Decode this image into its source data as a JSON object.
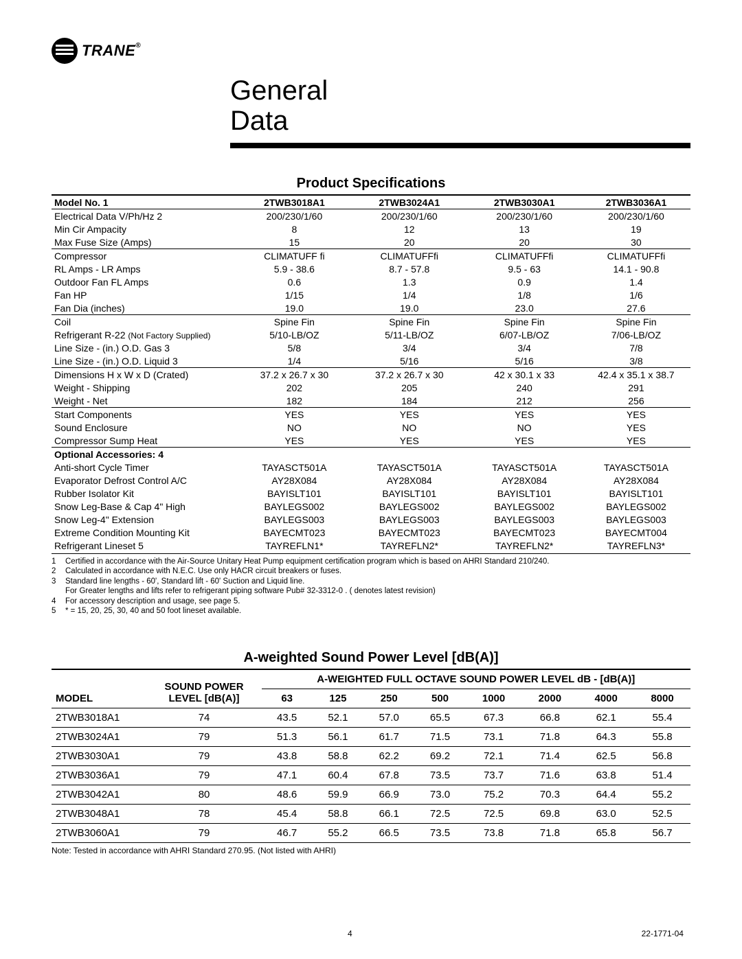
{
  "logo": {
    "brand": "TRANE"
  },
  "title_line1": "General",
  "title_line2": "Data",
  "spec_heading": "Product Specifications",
  "spec_table": {
    "header_label": "Model No. 1",
    "models": [
      "2TWB3018A1",
      "2TWB3024A1",
      "2TWB3030A1",
      "2TWB3036A1"
    ],
    "groups": [
      {
        "rows": [
          {
            "label": "Electrical Data V/Ph/Hz 2",
            "vals": [
              "200/230/1/60",
              "200/230/1/60",
              "200/230/1/60",
              "200/230/1/60"
            ]
          },
          {
            "label": "Min Cir Ampacity",
            "vals": [
              "8",
              "12",
              "13",
              "19"
            ]
          },
          {
            "label": "Max Fuse Size (Amps)",
            "vals": [
              "15",
              "20",
              "20",
              "30"
            ]
          }
        ]
      },
      {
        "rows": [
          {
            "label": "Compressor",
            "vals": [
              "CLIMATUFF fi",
              "CLIMATUFFfi",
              "CLIMATUFFfi",
              "CLIMATUFFfi"
            ]
          },
          {
            "label": "RL Amps - LR Amps",
            "vals": [
              "5.9 - 38.6",
              "8.7 - 57.8",
              "9.5 - 63",
              "14.1 - 90.8"
            ]
          },
          {
            "label": "Outdoor Fan FL Amps",
            "vals": [
              "0.6",
              "1.3",
              "0.9",
              "1.4"
            ]
          },
          {
            "label": "Fan HP",
            "vals": [
              "1/15",
              "1/4",
              "1/8",
              "1/6"
            ]
          },
          {
            "label": "Fan Dia (inches)",
            "vals": [
              "19.0",
              "19.0",
              "23.0",
              "27.6"
            ]
          }
        ]
      },
      {
        "rows": [
          {
            "label": "Coil",
            "vals": [
              "Spine Fin",
              "Spine Fin",
              "Spine Fin",
              "Spine Fin"
            ]
          },
          {
            "label": "Refrigerant  R-22  ",
            "label_suffix": "(Not Factory Supplied)",
            "vals": [
              "5/10-LB/OZ",
              "5/11-LB/OZ",
              "6/07-LB/OZ",
              "7/06-LB/OZ"
            ]
          },
          {
            "label": "Line Size - (in.) O.D. Gas 3",
            "vals": [
              "5/8",
              "3/4",
              "3/4",
              "7/8"
            ]
          },
          {
            "label": "Line Size - (in.) O.D. Liquid 3",
            "vals": [
              "1/4",
              "5/16",
              "5/16",
              "3/8"
            ]
          }
        ]
      },
      {
        "rows": [
          {
            "label": "Dimensions H x W x D (Crated)",
            "vals": [
              "37.2 x 26.7 x 30",
              "37.2 x 26.7 x 30",
              "42 x 30.1 x 33",
              "42.4 x 35.1 x 38.7"
            ]
          },
          {
            "label": "Weight - Shipping",
            "vals": [
              "202",
              "205",
              "240",
              "291"
            ]
          },
          {
            "label": "Weight - Net",
            "vals": [
              "182",
              "184",
              "212",
              "256"
            ]
          }
        ]
      },
      {
        "rows": [
          {
            "label": "Start  Components",
            "vals": [
              "YES",
              "YES",
              "YES",
              "YES"
            ]
          },
          {
            "label": "Sound Enclosure",
            "vals": [
              "NO",
              "NO",
              "NO",
              "YES"
            ]
          },
          {
            "label": "Compressor Sump Heat",
            "vals": [
              "YES",
              "YES",
              "YES",
              "YES"
            ]
          }
        ]
      },
      {
        "header": "Optional  Accessories:  4",
        "rows": [
          {
            "label": "Anti-short Cycle Timer",
            "vals": [
              "TAYASCT501A",
              "TAYASCT501A",
              "TAYASCT501A",
              "TAYASCT501A"
            ]
          },
          {
            "label": "Evaporator Defrost Control A/C",
            "vals": [
              "AY28X084",
              "AY28X084",
              "AY28X084",
              "AY28X084"
            ]
          },
          {
            "label": "Rubber Isolator Kit",
            "vals": [
              "BAYISLT101",
              "BAYISLT101",
              "BAYISLT101",
              "BAYISLT101"
            ]
          },
          {
            "label": "Snow Leg-Base & Cap 4\" High",
            "vals": [
              "BAYLEGS002",
              "BAYLEGS002",
              "BAYLEGS002",
              "BAYLEGS002"
            ]
          },
          {
            "label": "Snow Leg-4\" Extension",
            "vals": [
              "BAYLEGS003",
              "BAYLEGS003",
              "BAYLEGS003",
              "BAYLEGS003"
            ]
          },
          {
            "label": "Extreme   Condition   Mounting   Kit",
            "vals": [
              "BAYECMT023",
              "BAYECMT023",
              "BAYECMT023",
              "BAYECMT004"
            ]
          },
          {
            "label": "Refrigerant   Lineset    5",
            "vals": [
              "TAYREFLN1*",
              "TAYREFLN2*",
              "TAYREFLN2*",
              "TAYREFLN3*"
            ]
          }
        ]
      }
    ]
  },
  "footnotes": [
    {
      "n": "1",
      "t": "Certified in accordance with the Air-Source Unitary Heat Pump equipment certification program which is based on AHRI Standard 210/240."
    },
    {
      "n": "2",
      "t": "Calculated in accordance with N.E.C. Use only HACR circuit breakers or fuses."
    },
    {
      "n": "3",
      "t": "Standard line lengths - 60', Standard lift - 60' Suction and Liquid line."
    },
    {
      "n": "",
      "t": "For Greater lengths and lifts refer to refrigerant piping software Pub# 32-3312-0 . ( denotes latest revision)"
    },
    {
      "n": "4",
      "t": "For accessory description and usage, see page 5."
    },
    {
      "n": "5",
      "t": "* = 15, 20, 25, 30, 40 and 50 foot lineset available."
    }
  ],
  "sound_heading": "A-weighted Sound Power Level [dB(A)]",
  "sound_table": {
    "col_model": "MODEL",
    "col_spl": "SOUND POWER LEVEL  [dB(A)]",
    "octave_header": "A-WEIGHTED FULL OCTAVE SOUND POWER LEVEL dB - [dB(A)]",
    "freqs": [
      "63",
      "125",
      "250",
      "500",
      "1000",
      "2000",
      "4000",
      "8000"
    ],
    "rows": [
      {
        "model": "2TWB3018A1",
        "spl": "74",
        "v": [
          "43.5",
          "52.1",
          "57.0",
          "65.5",
          "67.3",
          "66.8",
          "62.1",
          "55.4"
        ]
      },
      {
        "model": "2TWB3024A1",
        "spl": "79",
        "v": [
          "51.3",
          "56.1",
          "61.7",
          "71.5",
          "73.1",
          "71.8",
          "64.3",
          "55.8"
        ]
      },
      {
        "model": "2TWB3030A1",
        "spl": "79",
        "v": [
          "43.8",
          "58.8",
          "62.2",
          "69.2",
          "72.1",
          "71.4",
          "62.5",
          "56.8"
        ]
      },
      {
        "model": "2TWB3036A1",
        "spl": "79",
        "v": [
          "47.1",
          "60.4",
          "67.8",
          "73.5",
          "73.7",
          "71.6",
          "63.8",
          "51.4"
        ]
      },
      {
        "model": "2TWB3042A1",
        "spl": "80",
        "v": [
          "48.6",
          "59.9",
          "66.9",
          "73.0",
          "75.2",
          "70.3",
          "64.4",
          "55.2"
        ]
      },
      {
        "model": "2TWB3048A1",
        "spl": "78",
        "v": [
          "45.4",
          "58.8",
          "66.1",
          "72.5",
          "72.5",
          "69.8",
          "63.0",
          "52.5"
        ]
      },
      {
        "model": "2TWB3060A1",
        "spl": "79",
        "v": [
          "46.7",
          "55.2",
          "66.5",
          "73.5",
          "73.8",
          "71.8",
          "65.8",
          "56.7"
        ]
      }
    ],
    "note": "Note: Tested in accordance with AHRI Standard 270.95. (Not listed with AHRI)"
  },
  "footer": {
    "page": "4",
    "doc": "22-1771-04"
  }
}
